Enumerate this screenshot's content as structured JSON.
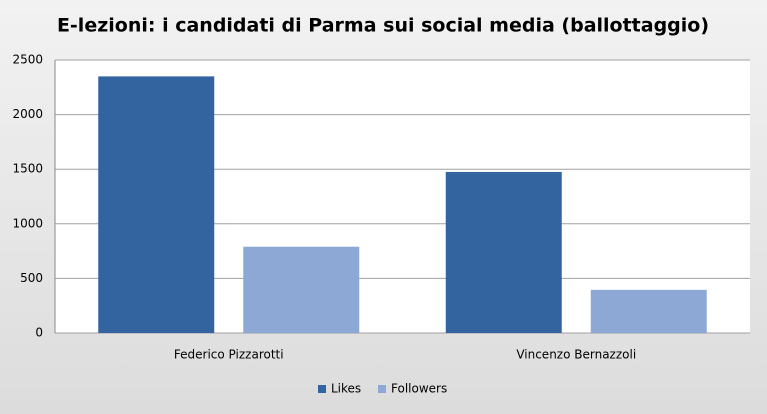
{
  "chart_data": {
    "type": "bar",
    "title": "E-lezioni: i candidati di Parma sui social media (ballottaggio)",
    "categories": [
      "Federico Pizzarotti",
      "Vincenzo Bernazzoli"
    ],
    "series": [
      {
        "name": "Likes",
        "color": "#33649f",
        "values": [
          2350,
          1475
        ]
      },
      {
        "name": "Followers",
        "color": "#8ea8d6",
        "values": [
          790,
          395
        ]
      }
    ],
    "ylim": [
      0,
      2500
    ],
    "yticks": [
      0,
      500,
      1000,
      1500,
      2000,
      2500
    ],
    "grid": true,
    "legend": "bottom"
  }
}
